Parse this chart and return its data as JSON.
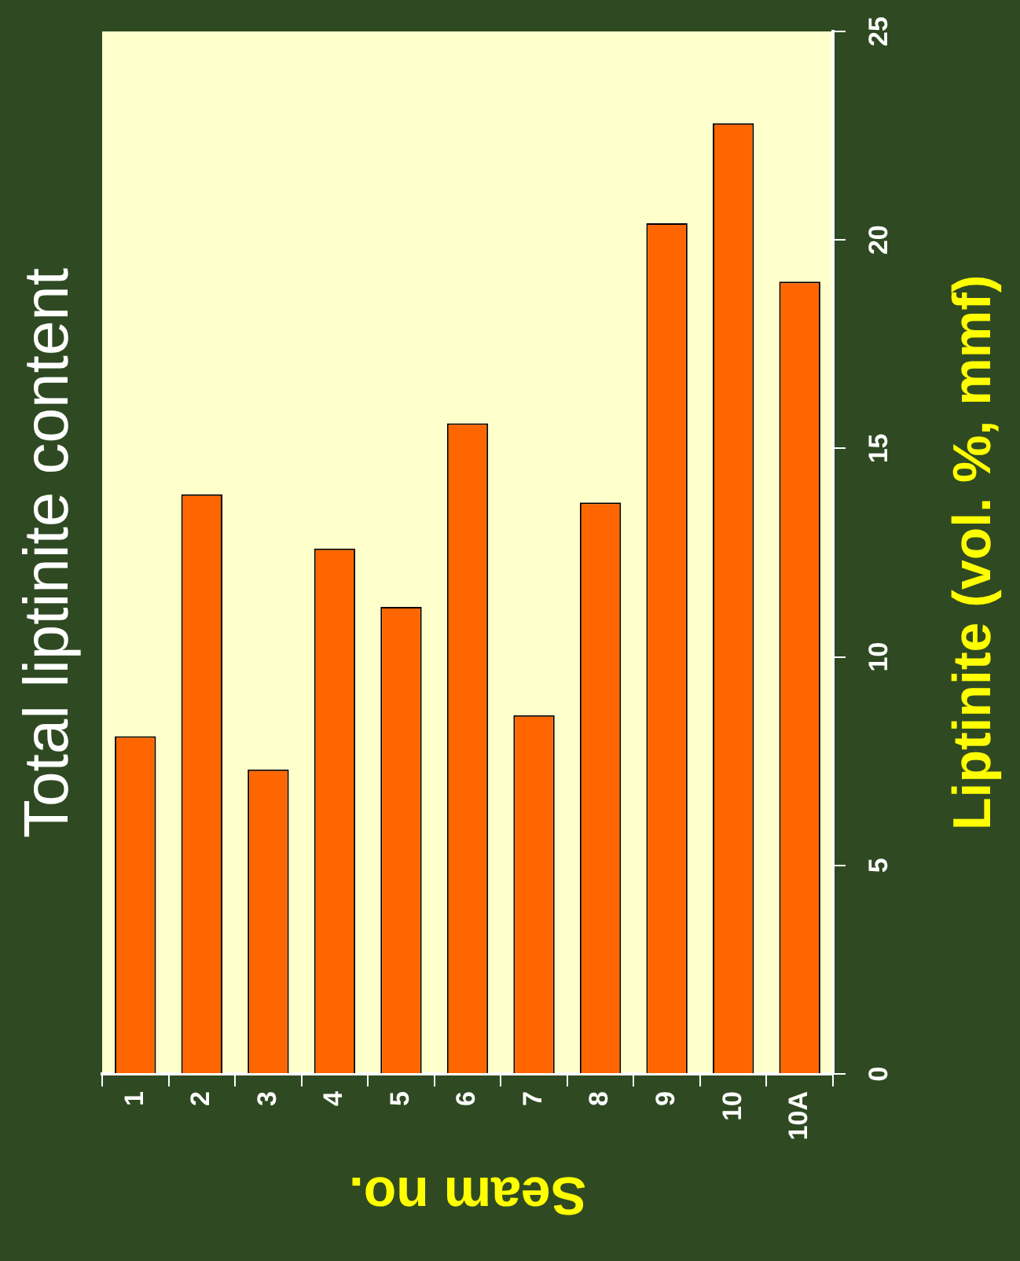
{
  "chart_data": {
    "type": "bar",
    "title": "Total liptinite content",
    "xlabel": "Seam no.",
    "ylabel": "Liptinite (vol. %, mmf)",
    "categories": [
      "1",
      "2",
      "3",
      "4",
      "5",
      "6",
      "7",
      "8",
      "9",
      "10",
      "10A"
    ],
    "values": [
      8.1,
      13.9,
      7.3,
      12.6,
      11.2,
      15.6,
      8.6,
      13.7,
      20.4,
      22.8,
      19.0
    ],
    "color": "#ff6600",
    "ylim": [
      0,
      25
    ],
    "yticks": [
      0,
      5,
      10,
      15,
      20,
      25
    ],
    "grid": false,
    "legend": false
  }
}
